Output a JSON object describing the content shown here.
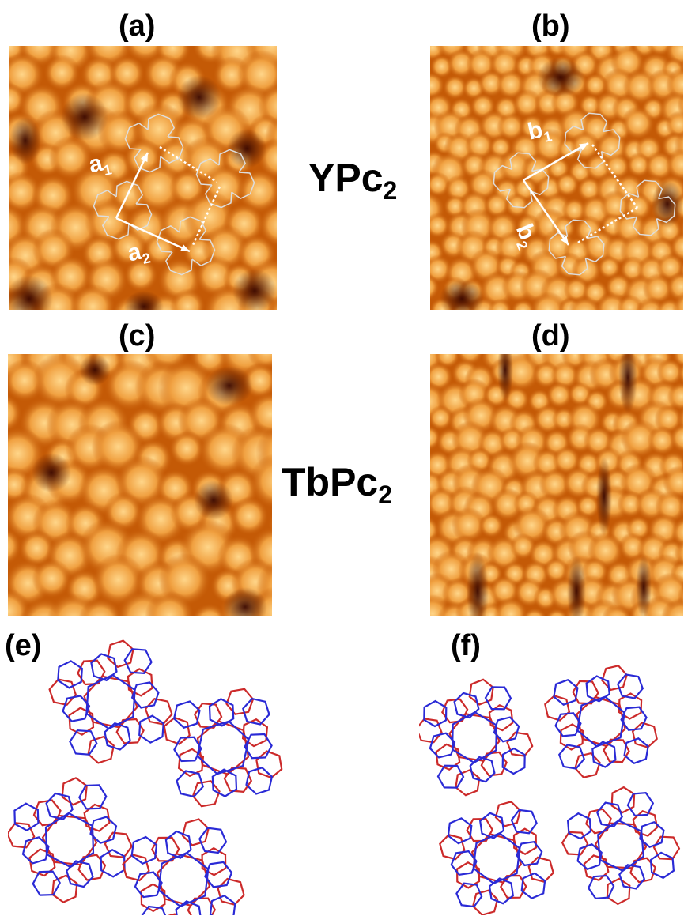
{
  "figure": {
    "panels": {
      "a": {
        "label": "(a)",
        "vector_1": "a",
        "vector_1_sub": "1",
        "vector_2": "a",
        "vector_2_sub": "2"
      },
      "b": {
        "label": "(b)",
        "vector_1": "b",
        "vector_1_sub": "1",
        "vector_2": "b",
        "vector_2_sub": "2"
      },
      "c": {
        "label": "(c)"
      },
      "d": {
        "label": "(d)"
      },
      "e": {
        "label": "(e)"
      },
      "f": {
        "label": "(f)"
      }
    },
    "row_labels": {
      "top": {
        "base": "YPc",
        "sub": "2"
      },
      "middle": {
        "base": "TbPc",
        "sub": "2"
      }
    },
    "colors": {
      "stm_dark": "#3a0800",
      "stm_mid": "#c45a06",
      "stm_bright": "#ffd68a",
      "ring_red": "#cc2a2a",
      "ring_blue": "#2a2ad6",
      "overlay": "#ffffff"
    }
  }
}
